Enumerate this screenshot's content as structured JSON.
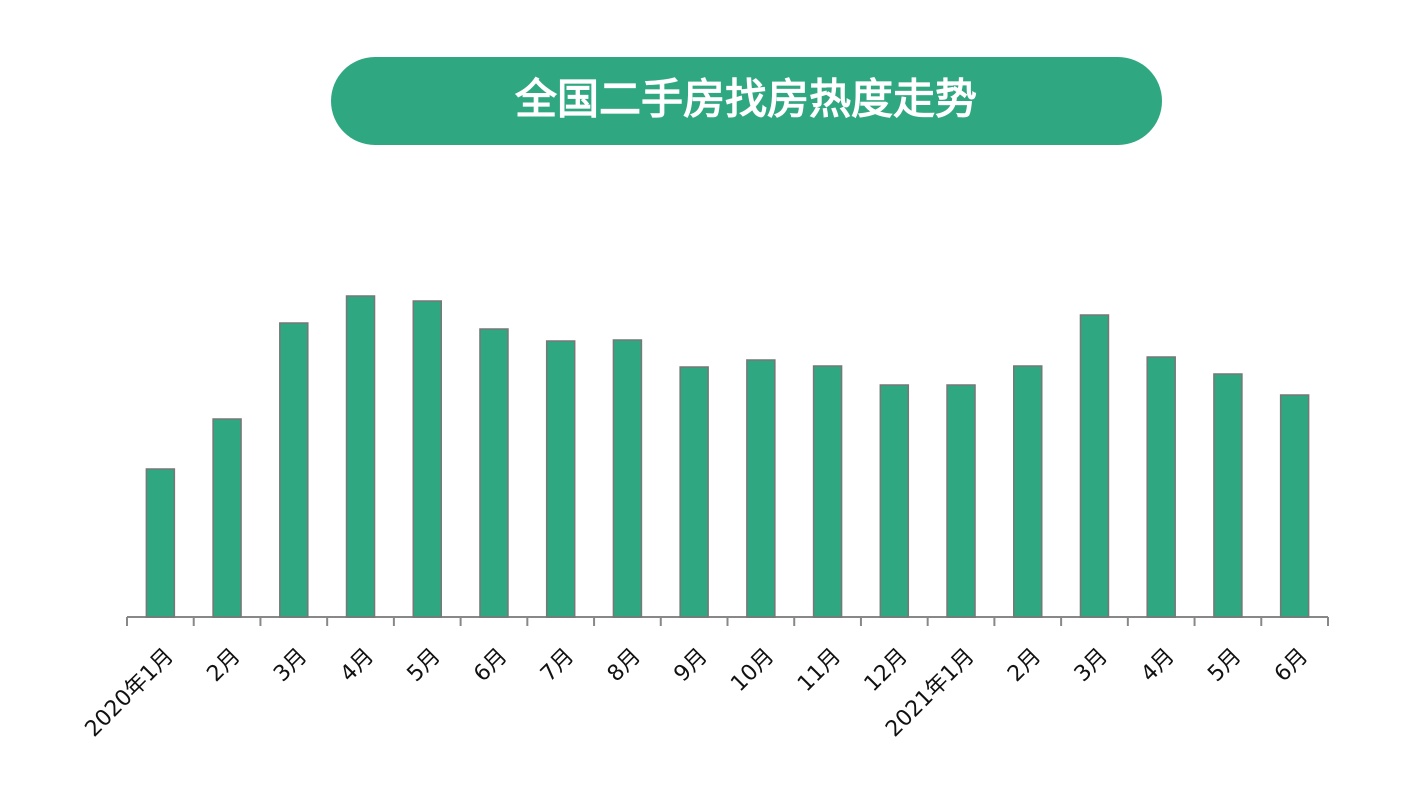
{
  "chart_data": {
    "type": "bar",
    "title": "全国二手房找房热度走势",
    "categories": [
      "2020年1月",
      "2月",
      "3月",
      "4月",
      "5月",
      "6月",
      "7月",
      "8月",
      "9月",
      "10月",
      "11月",
      "12月",
      "2021年1月",
      "2月",
      "3月",
      "4月",
      "5月",
      "6月"
    ],
    "values": [
      148,
      198,
      294,
      321,
      316,
      288,
      276,
      277,
      250,
      257,
      251,
      232,
      232,
      251,
      302,
      260,
      243,
      222
    ],
    "color": "#2fa882"
  }
}
